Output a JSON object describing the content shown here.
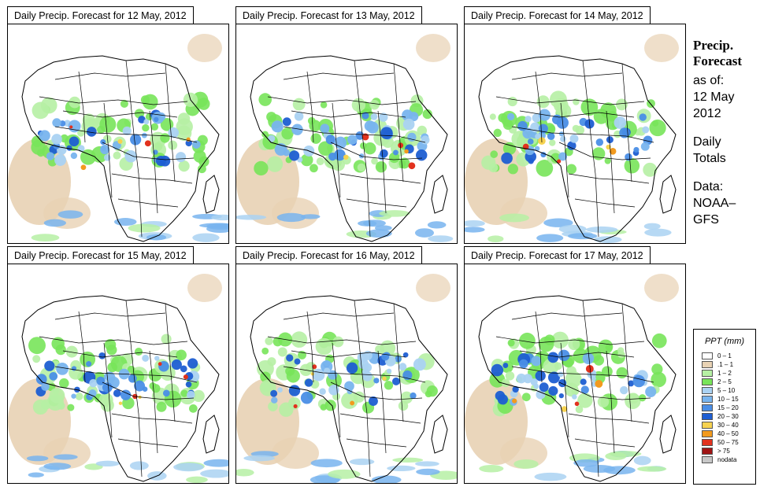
{
  "panels": [
    {
      "title": "Daily Precip. Forecast for  12 May, 2012"
    },
    {
      "title": "Daily Precip. Forecast for  13 May, 2012"
    },
    {
      "title": "Daily Precip. Forecast for  14 May, 2012"
    },
    {
      "title": "Daily Precip. Forecast for  15 May, 2012"
    },
    {
      "title": "Daily Precip. Forecast for  16 May, 2012"
    },
    {
      "title": "Daily Precip. Forecast for  17 May, 2012"
    }
  ],
  "sidebar": {
    "heading1": "Precip.",
    "heading2": "Forecast",
    "asof": "as of:",
    "date1": "12 May",
    "date2": "2012",
    "totals1": "Daily",
    "totals2": "Totals",
    "data1": "Data:",
    "data2": "NOAA–",
    "data3": "GFS"
  },
  "legend": {
    "title": "PPT (mm)",
    "items": [
      {
        "label": "0 – 1",
        "color": "#ffffff"
      },
      {
        "label": ".1 – 1",
        "color": "#e8d2b4"
      },
      {
        "label": "1 – 2",
        "color": "#b6f0a4"
      },
      {
        "label": "2 – 5",
        "color": "#78e45a"
      },
      {
        "label": "5 – 10",
        "color": "#aad2f2"
      },
      {
        "label": "10 – 15",
        "color": "#78b4ee"
      },
      {
        "label": "15 – 20",
        "color": "#4a8ee6"
      },
      {
        "label": "20 – 30",
        "color": "#1e5ed2"
      },
      {
        "label": "30 – 40",
        "color": "#f6d250"
      },
      {
        "label": "40 – 50",
        "color": "#f29a1e"
      },
      {
        "label": "50 – 75",
        "color": "#e2321e"
      },
      {
        "label": "> 75",
        "color": "#a01414"
      },
      {
        "label": "nodata",
        "color": "#c8c8c8"
      }
    ]
  }
}
